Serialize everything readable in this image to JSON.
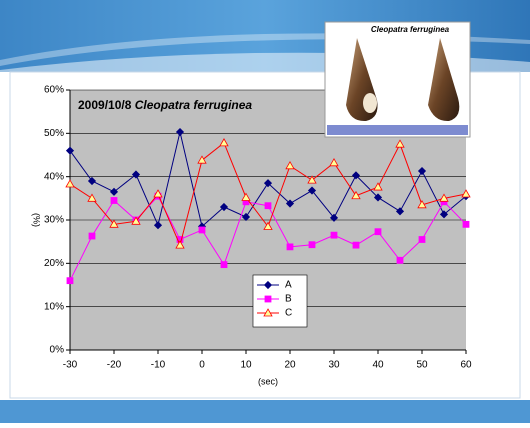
{
  "chart_data": {
    "type": "line",
    "title": "2009/10/8",
    "title_species": "Cleopatra ferruginea",
    "photo_caption": "Cleopatra ferruginea",
    "x_label": "(sec)",
    "y_label": "(%)",
    "x": [
      -30,
      -25,
      -20,
      -15,
      -10,
      -5,
      0,
      5,
      10,
      15,
      20,
      25,
      30,
      35,
      40,
      45,
      50,
      55,
      60
    ],
    "series": [
      {
        "name": "A",
        "color": "#000080",
        "marker": "diamond",
        "marker_fill": "#000080",
        "values": [
          46,
          39,
          36.5,
          40.5,
          28.8,
          50.3,
          28.5,
          33,
          30.7,
          38.5,
          33.8,
          36.8,
          30.5,
          40.3,
          35.2,
          32,
          41.3,
          31.3,
          35.5
        ]
      },
      {
        "name": "B",
        "color": "#ff00ff",
        "marker": "square",
        "marker_fill": "#ff00ff",
        "values": [
          16,
          26.3,
          34.5,
          30,
          35.5,
          25.5,
          27.7,
          19.7,
          34.2,
          33.3,
          23.8,
          24.3,
          26.5,
          24.2,
          27.3,
          20.7,
          25.5,
          34.2,
          29
        ]
      },
      {
        "name": "C",
        "color": "#ff0000",
        "marker": "triangle",
        "marker_fill": "#ffff99",
        "values": [
          38.3,
          35,
          29,
          29.7,
          36,
          24.2,
          43.8,
          47.8,
          35.2,
          28.5,
          42.5,
          39.2,
          43.2,
          35.6,
          37.6,
          47.5,
          33.5,
          35,
          36
        ]
      }
    ],
    "xlim": [
      -30,
      60
    ],
    "xticks": [
      -30,
      -20,
      -10,
      0,
      10,
      20,
      30,
      40,
      50,
      60
    ],
    "ylim": [
      0,
      60
    ],
    "yticks": [
      {
        "value": 0,
        "label": "0%"
      },
      {
        "value": 10,
        "label": "10%"
      },
      {
        "value": 20,
        "label": "20%"
      },
      {
        "value": 30,
        "label": "30%"
      },
      {
        "value": 40,
        "label": "40%"
      },
      {
        "value": 50,
        "label": "50%"
      },
      {
        "value": 60,
        "label": "60%"
      }
    ],
    "grid": true,
    "legend": "center"
  }
}
